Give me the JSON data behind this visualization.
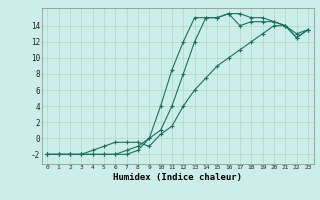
{
  "xlabel": "Humidex (Indice chaleur)",
  "bg_color": "#cceee8",
  "line_color": "#1a7060",
  "grid_color": "#b0d8cc",
  "xlim": [
    -0.5,
    23.5
  ],
  "ylim": [
    -3.2,
    16.2
  ],
  "yticks": [
    -2,
    0,
    2,
    4,
    6,
    8,
    10,
    12,
    14
  ],
  "xticks": [
    0,
    1,
    2,
    3,
    4,
    5,
    6,
    7,
    8,
    9,
    10,
    11,
    12,
    13,
    14,
    15,
    16,
    17,
    18,
    19,
    20,
    21,
    22,
    23
  ],
  "line1_x": [
    0,
    1,
    2,
    3,
    4,
    5,
    6,
    7,
    8,
    9,
    10,
    11,
    12,
    13,
    14,
    15,
    16,
    17,
    18,
    19,
    20,
    21,
    22,
    23
  ],
  "line1_y": [
    -2,
    -2,
    -2,
    -2,
    -2,
    -2,
    -2,
    -2,
    -1.5,
    0,
    4,
    8.5,
    12,
    15,
    15,
    15,
    15.5,
    15.5,
    15,
    15,
    14.5,
    14,
    12.5,
    13.5
  ],
  "line2_x": [
    0,
    1,
    2,
    3,
    4,
    5,
    6,
    7,
    8,
    9,
    10,
    11,
    12,
    13,
    14,
    15,
    16,
    17,
    18,
    19,
    20,
    21,
    22,
    23
  ],
  "line2_y": [
    -2,
    -2,
    -2,
    -2,
    -2,
    -2,
    -2,
    -1.5,
    -1,
    0,
    1,
    4,
    8,
    12,
    15,
    15,
    15.5,
    14,
    14.5,
    14.5,
    14.5,
    14,
    13,
    13.5
  ],
  "line3_x": [
    0,
    1,
    2,
    3,
    4,
    5,
    6,
    7,
    8,
    9,
    10,
    11,
    12,
    13,
    14,
    15,
    16,
    17,
    18,
    19,
    20,
    21,
    22,
    23
  ],
  "line3_y": [
    -2,
    -2,
    -2,
    -2,
    -1.5,
    -1,
    -0.5,
    -0.5,
    -0.5,
    -1,
    0.5,
    1.5,
    4,
    6,
    7.5,
    9,
    10,
    11,
    12,
    13,
    14,
    14,
    12.5,
    13.5
  ]
}
